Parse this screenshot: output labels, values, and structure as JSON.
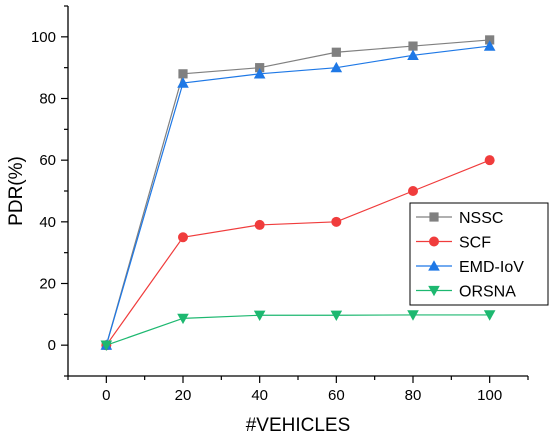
{
  "chart_data": {
    "type": "line",
    "title": "",
    "xlabel": "#VEHICLES",
    "ylabel": "PDR(%)",
    "xlim": [
      -10,
      110
    ],
    "ylim": [
      -10,
      110
    ],
    "x_ticks": [
      0,
      20,
      40,
      60,
      80,
      100
    ],
    "y_ticks": [
      0,
      20,
      40,
      60,
      80,
      100
    ],
    "grid": false,
    "legend_position": "center-right",
    "x": [
      0,
      20,
      40,
      60,
      80,
      100
    ],
    "series": [
      {
        "name": "NSSC",
        "marker": "square",
        "color": "#808080",
        "values": [
          0,
          88,
          90,
          95,
          97,
          99
        ]
      },
      {
        "name": "SCF",
        "marker": "circle",
        "color": "#f03c3c",
        "values": [
          0,
          35,
          39,
          40,
          50,
          60
        ]
      },
      {
        "name": "EMD-IoV",
        "marker": "triangle-up",
        "color": "#1e78e6",
        "values": [
          0,
          85,
          88,
          90,
          94,
          97
        ]
      },
      {
        "name": "ORSNA",
        "marker": "triangle-down",
        "color": "#1db870",
        "values": [
          0,
          8.7,
          9.7,
          9.7,
          9.8,
          9.8
        ]
      }
    ]
  }
}
